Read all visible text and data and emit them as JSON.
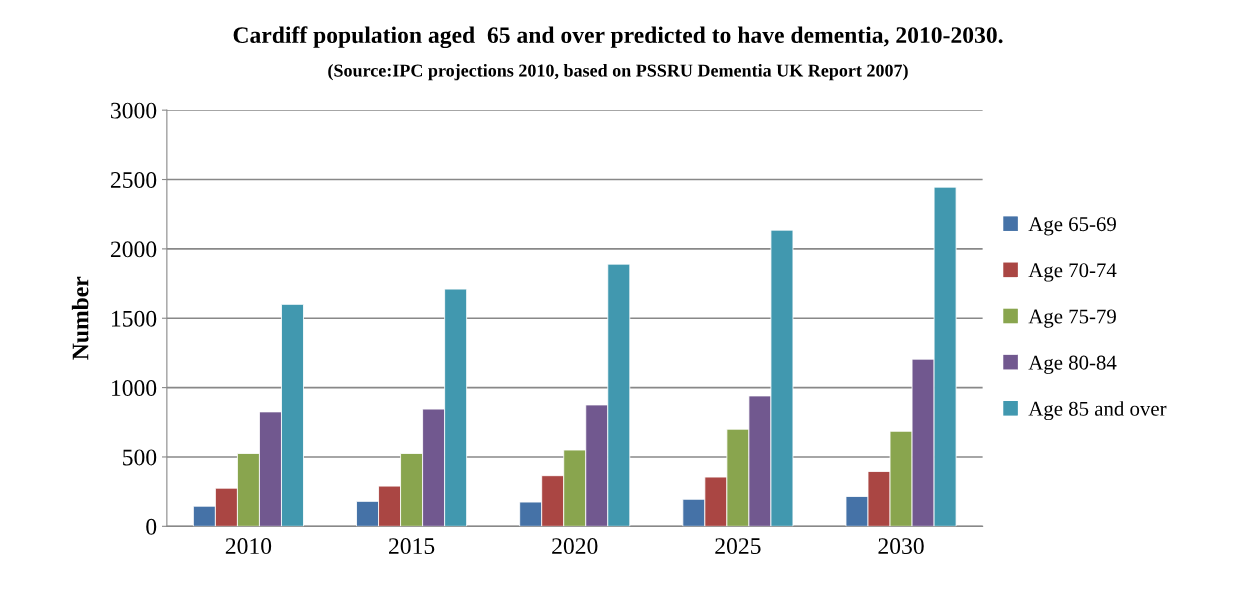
{
  "chart_data": {
    "type": "bar",
    "title": "Cardiff population aged  65 and over predicted to have dementia, 2010-2030.",
    "subtitle": "(Source:IPC projections 2010, based on PSSRU Dementia UK Report 2007)",
    "ylabel": "Number",
    "categories": [
      "2010",
      "2015",
      "2020",
      "2025",
      "2030"
    ],
    "series": [
      {
        "name": "Age 65-69",
        "color": "#4572a7",
        "values": [
          145,
          180,
          175,
          195,
          215
        ]
      },
      {
        "name": "Age 70-74",
        "color": "#aa4643",
        "values": [
          275,
          290,
          365,
          355,
          395
        ]
      },
      {
        "name": "Age 75-79",
        "color": "#89a54e",
        "values": [
          525,
          525,
          550,
          700,
          685
        ]
      },
      {
        "name": "Age 80-84",
        "color": "#71588f",
        "values": [
          825,
          845,
          875,
          940,
          1205
        ]
      },
      {
        "name": "Age 85 and over",
        "color": "#4198af",
        "values": [
          1600,
          1710,
          1890,
          2135,
          2445
        ]
      }
    ],
    "ylim": [
      0,
      3000
    ],
    "yticks": [
      0,
      500,
      1000,
      1500,
      2000,
      2500,
      3000
    ],
    "grid": "y",
    "legend": "right"
  }
}
